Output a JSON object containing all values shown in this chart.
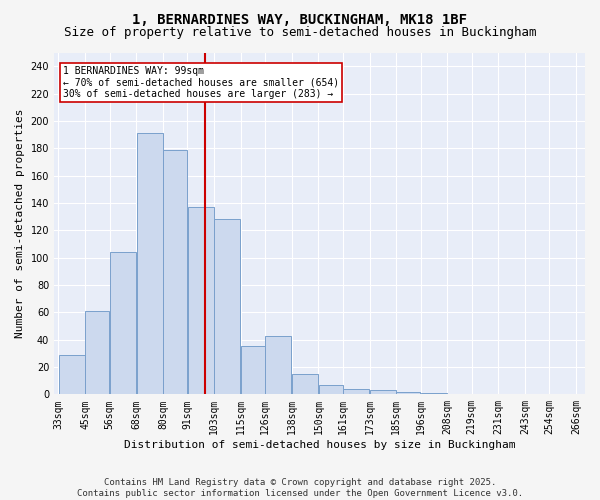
{
  "title": "1, BERNARDINES WAY, BUCKINGHAM, MK18 1BF",
  "subtitle": "Size of property relative to semi-detached houses in Buckingham",
  "xlabel": "Distribution of semi-detached houses by size in Buckingham",
  "ylabel": "Number of semi-detached properties",
  "bin_edges": [
    33,
    45,
    56,
    68,
    80,
    91,
    103,
    115,
    126,
    138,
    150,
    161,
    173,
    185,
    196,
    208,
    219,
    231,
    243,
    254,
    266
  ],
  "bar_heights": [
    29,
    61,
    104,
    191,
    179,
    137,
    128,
    35,
    43,
    15,
    7,
    4,
    3,
    2,
    1,
    0,
    0,
    0,
    0,
    0
  ],
  "tick_labels": [
    "33sqm",
    "45sqm",
    "56sqm",
    "68sqm",
    "80sqm",
    "91sqm",
    "103sqm",
    "115sqm",
    "126sqm",
    "138sqm",
    "150sqm",
    "161sqm",
    "173sqm",
    "185sqm",
    "196sqm",
    "208sqm",
    "219sqm",
    "231sqm",
    "243sqm",
    "254sqm",
    "266sqm"
  ],
  "property_line_x": 99,
  "bar_color": "#ccd9ee",
  "bar_edge_color": "#7aa0cc",
  "line_color": "#cc0000",
  "annotation_text": "1 BERNARDINES WAY: 99sqm\n← 70% of semi-detached houses are smaller (654)\n30% of semi-detached houses are larger (283) →",
  "annotation_box_color": "#cc0000",
  "ylim": [
    0,
    250
  ],
  "yticks": [
    0,
    20,
    40,
    60,
    80,
    100,
    120,
    140,
    160,
    180,
    200,
    220,
    240
  ],
  "background_color": "#e8edf8",
  "fig_background": "#f5f5f5",
  "grid_color": "#ffffff",
  "footer": "Contains HM Land Registry data © Crown copyright and database right 2025.\nContains public sector information licensed under the Open Government Licence v3.0.",
  "title_fontsize": 10,
  "subtitle_fontsize": 9,
  "label_fontsize": 8,
  "tick_fontsize": 7,
  "footer_fontsize": 6.5,
  "annotation_fontsize": 7
}
